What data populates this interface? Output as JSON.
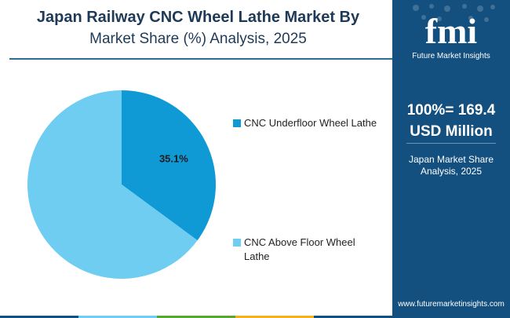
{
  "title_line1": "Japan Railway CNC Wheel Lathe Market By",
  "title_line2": "Market Share (%) Analysis, 2025",
  "brand": {
    "logo_text": "fmi",
    "name": "Future Market Insights",
    "website": "www.futuremarketinsights.com",
    "color": "#14507f"
  },
  "total": {
    "line1": "100%= 169.4",
    "line2": "USD Million"
  },
  "subtitle": "Japan Market Share Analysis, 2025",
  "chart_data": {
    "type": "pie",
    "categories": [
      "CNC Underfloor Wheel Lathe",
      "CNC Above Floor Wheel Lathe"
    ],
    "values": [
      35.1,
      64.9
    ],
    "colors": [
      "#0f9ad6",
      "#6fcdf2"
    ],
    "data_labels": [
      "35.1%",
      ""
    ],
    "legend_placement": "right"
  }
}
